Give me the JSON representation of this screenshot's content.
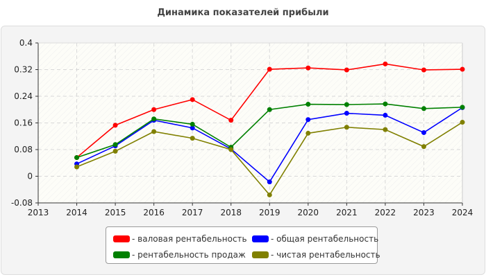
{
  "chart_data": {
    "type": "line",
    "title": "Динамика показателей прибыли",
    "x": [
      2014,
      2015,
      2016,
      2017,
      2018,
      2019,
      2020,
      2021,
      2022,
      2023,
      2024
    ],
    "xlim": [
      2013,
      2024
    ],
    "ylim": [
      -0.08,
      0.4
    ],
    "yticks": [
      "0.4",
      "0.32",
      "0.24",
      "0.16",
      "0.08",
      "0",
      "-0.08"
    ],
    "xticks": [
      "2013",
      "2014",
      "2015",
      "2016",
      "2017",
      "2018",
      "2019",
      "2020",
      "2021",
      "2022",
      "2023",
      "2024"
    ],
    "grid": true,
    "legend_position": "bottom",
    "series": [
      {
        "name": "- валовая рентабельность",
        "color": "#ff0000",
        "values": [
          0.056,
          0.153,
          0.2,
          0.23,
          0.168,
          0.321,
          0.325,
          0.319,
          0.337,
          0.319,
          0.321
        ]
      },
      {
        "name": "- общая рентабельность",
        "color": "#0000ff",
        "values": [
          0.037,
          0.091,
          0.168,
          0.145,
          0.082,
          -0.017,
          0.17,
          0.189,
          0.183,
          0.131,
          0.206
        ]
      },
      {
        "name": "- рентабельность продаж",
        "color": "#008000",
        "values": [
          0.056,
          0.095,
          0.172,
          0.156,
          0.087,
          0.2,
          0.216,
          0.215,
          0.217,
          0.203,
          0.207
        ]
      },
      {
        "name": "- чистая рентабельность",
        "color": "#808000",
        "values": [
          0.028,
          0.075,
          0.134,
          0.114,
          0.08,
          -0.056,
          0.129,
          0.147,
          0.14,
          0.089,
          0.162
        ]
      }
    ]
  }
}
